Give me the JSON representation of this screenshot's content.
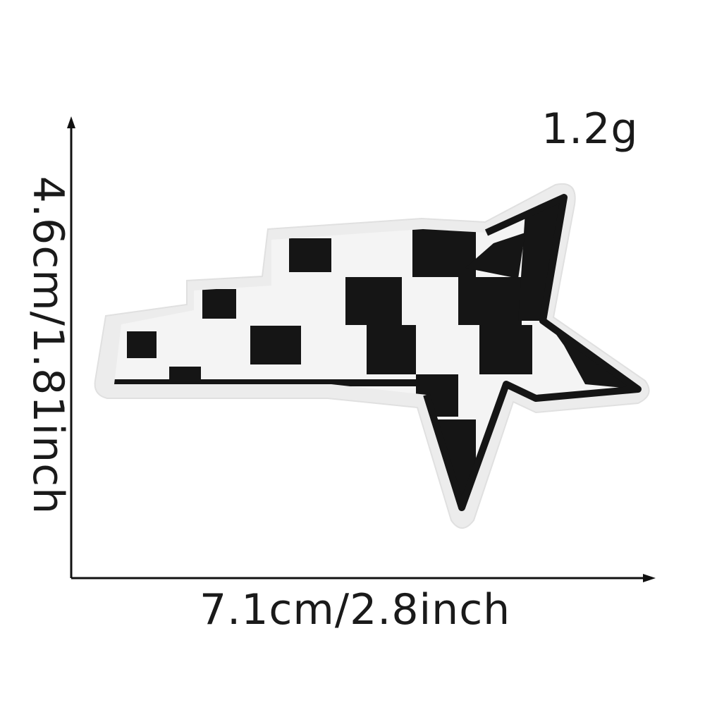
{
  "product": {
    "weight": "1.2g",
    "width_dimension": "7.1cm/2.8inch",
    "height_dimension": "4.6cm/1.81inch",
    "subject": "checkered-flag-star-embroidered-patch-icon",
    "colors": {
      "thread_black": "#151515",
      "thread_white": "#f4f4f4",
      "felt_border": "#ececec",
      "axis": "#111111"
    }
  }
}
